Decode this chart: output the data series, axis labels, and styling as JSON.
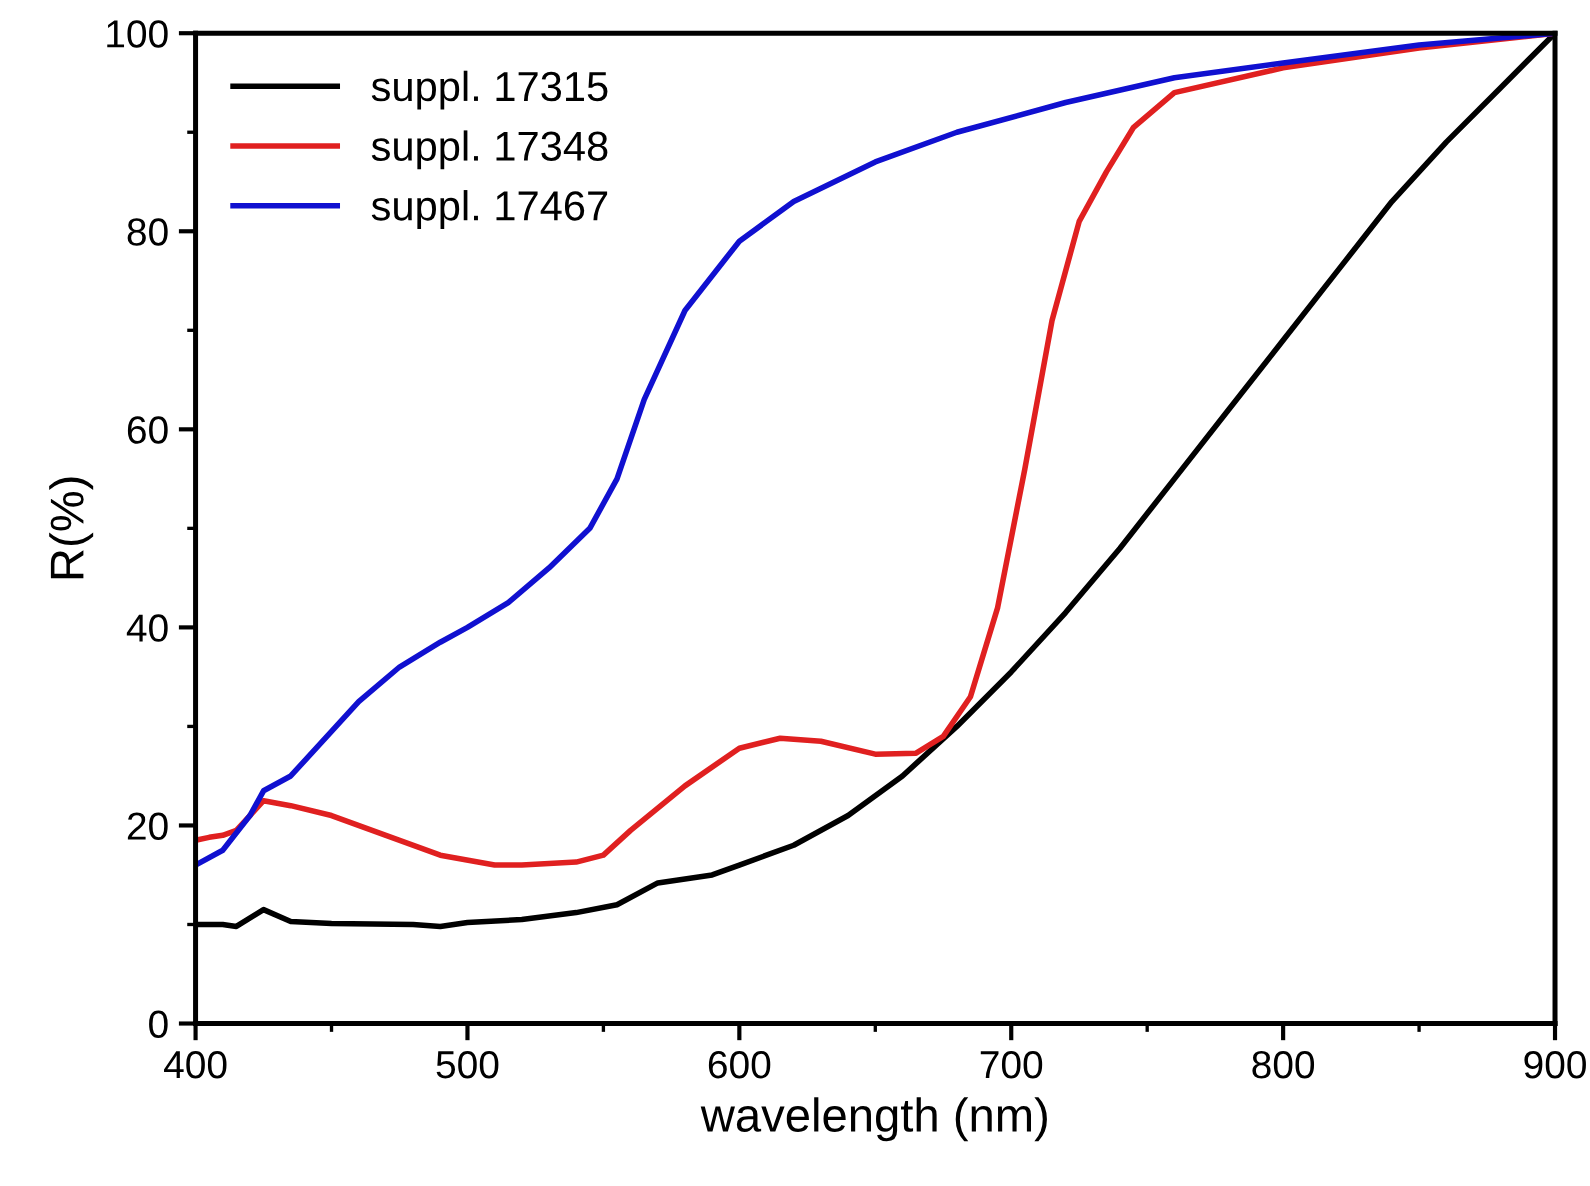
{
  "chart_data": {
    "type": "line",
    "xlabel": "wavelength (nm)",
    "ylabel": "R(%)",
    "xlim": [
      400,
      900
    ],
    "xticks": [
      400,
      500,
      600,
      700,
      800,
      900
    ],
    "ylim": [
      0,
      100
    ],
    "yticks": [
      0,
      20,
      40,
      60,
      80,
      100
    ],
    "grid": false,
    "legend": "top left",
    "line_style": "solid",
    "marker": "none",
    "series": [
      {
        "name": "suppl. 17315",
        "color": "#000000",
        "x": [
          400,
          410,
          415,
          425,
          435,
          450,
          480,
          490,
          500,
          520,
          540,
          555,
          570,
          590,
          600,
          620,
          640,
          660,
          680,
          700,
          720,
          740,
          760,
          780,
          800,
          820,
          840,
          860,
          880,
          900
        ],
        "values": [
          10,
          10,
          9.8,
          11.5,
          10.3,
          10.1,
          10,
          9.8,
          10.2,
          10.5,
          11.2,
          12,
          14.2,
          15,
          16,
          18,
          21,
          25,
          30,
          35.5,
          41.5,
          48,
          55,
          62,
          69,
          76,
          83,
          89,
          94.5,
          100
        ]
      },
      {
        "name": "suppl. 17348",
        "color": "#e02020",
        "x": [
          400,
          405,
          410,
          415,
          420,
          425,
          435,
          450,
          470,
          490,
          510,
          520,
          540,
          550,
          560,
          580,
          600,
          615,
          630,
          650,
          665,
          675,
          685,
          695,
          705,
          715,
          725,
          735,
          745,
          760,
          800,
          850,
          900
        ],
        "values": [
          18.5,
          18.8,
          19,
          19.5,
          21,
          22.5,
          22,
          21,
          19,
          17,
          16,
          16,
          16.3,
          17,
          19.5,
          24,
          27.8,
          28.8,
          28.5,
          27.2,
          27.3,
          29,
          33,
          42,
          56,
          71,
          81,
          86,
          90.5,
          94,
          96.5,
          98.5,
          100
        ]
      },
      {
        "name": "suppl. 17467",
        "color": "#1010d0",
        "x": [
          400,
          410,
          420,
          425,
          435,
          450,
          460,
          475,
          490,
          500,
          515,
          530,
          545,
          555,
          565,
          580,
          600,
          620,
          650,
          680,
          720,
          760,
          800,
          850,
          900
        ],
        "values": [
          16,
          17.5,
          21,
          23.5,
          25,
          29.5,
          32.5,
          36,
          38.5,
          40,
          42.5,
          46,
          50,
          55,
          63,
          72,
          79,
          83,
          87,
          90,
          93,
          95.5,
          97,
          98.8,
          100
        ]
      }
    ]
  }
}
